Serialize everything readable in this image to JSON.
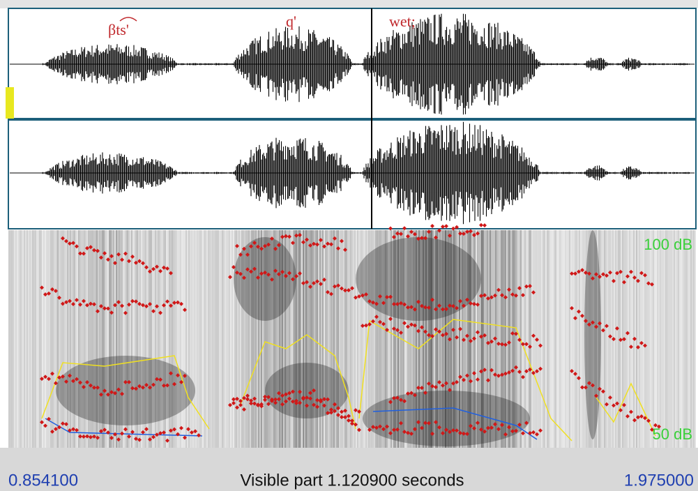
{
  "labels": {
    "segments": [
      "βts'",
      "q'",
      "wet;"
    ]
  },
  "spectrogram": {
    "top_db": "100 dB",
    "bottom_db": "50 dB"
  },
  "footer": {
    "start": "0.854100",
    "visible": "Visible part 1.120900 seconds",
    "end": "1.975000"
  }
}
